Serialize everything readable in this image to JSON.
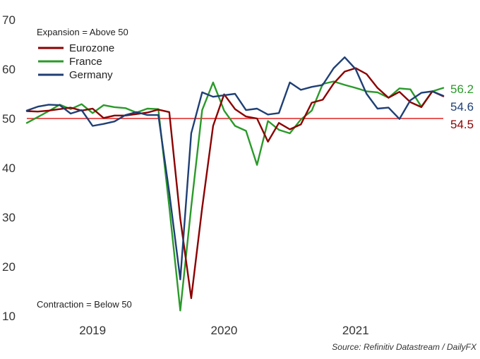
{
  "chart_data": {
    "type": "line",
    "title": "",
    "xlabel": "",
    "ylabel": "",
    "ylim": [
      10,
      70
    ],
    "yticks": [
      "10",
      "20",
      "30",
      "40",
      "50",
      "60",
      "70"
    ],
    "year_labels": [
      "2019",
      "2020",
      "2021"
    ],
    "reference_line": {
      "value": 50,
      "color": "#e02020"
    },
    "annotations": {
      "expansion": "Expansion = Above 50",
      "contraction": "Contraction = Below 50"
    },
    "source": "Source: Refinitiv Datastream / DailyFX",
    "series": [
      {
        "name": "Eurozone",
        "color": "#8b0000",
        "end_label": "54.5",
        "values": [
          51.5,
          51.4,
          51.6,
          51.9,
          52.2,
          51.6,
          52.0,
          50.1,
          50.6,
          50.6,
          50.9,
          51.2,
          51.8,
          51.3,
          29.7,
          13.6,
          31.9,
          48.5,
          54.9,
          51.9,
          50.4,
          50.0,
          45.3,
          49.1,
          47.8,
          48.8,
          53.2,
          53.8,
          57.1,
          59.5,
          60.2,
          59.0,
          56.2,
          54.2,
          55.4,
          53.3,
          52.3,
          55.5,
          54.5
        ]
      },
      {
        "name": "France",
        "color": "#2a9a2a",
        "end_label": "56.2",
        "values": [
          49.1,
          50.3,
          51.5,
          52.8,
          51.9,
          52.9,
          51.1,
          52.7,
          52.3,
          52.1,
          51.2,
          52.0,
          51.9,
          32.1,
          11.1,
          32.1,
          51.7,
          57.3,
          51.6,
          48.5,
          47.5,
          40.6,
          49.5,
          47.7,
          47.0,
          49.8,
          51.6,
          57.0,
          57.5,
          56.8,
          56.2,
          55.5,
          55.3,
          54.2,
          56.1,
          55.9,
          52.4,
          55.5,
          56.2
        ]
      },
      {
        "name": "Germany",
        "color": "#1f3f75",
        "end_label": "54.6",
        "values": [
          51.6,
          52.4,
          52.8,
          52.7,
          51.0,
          51.7,
          48.5,
          48.9,
          49.4,
          50.7,
          51.3,
          50.7,
          50.7,
          35.0,
          17.4,
          47.0,
          55.3,
          54.4,
          54.7,
          55.0,
          51.7,
          52.0,
          50.8,
          51.1,
          57.3,
          55.8,
          56.4,
          56.8,
          60.2,
          62.4,
          60.0,
          55.0,
          52.0,
          52.2,
          49.9,
          53.7,
          55.2,
          55.5,
          54.6
        ]
      }
    ]
  }
}
